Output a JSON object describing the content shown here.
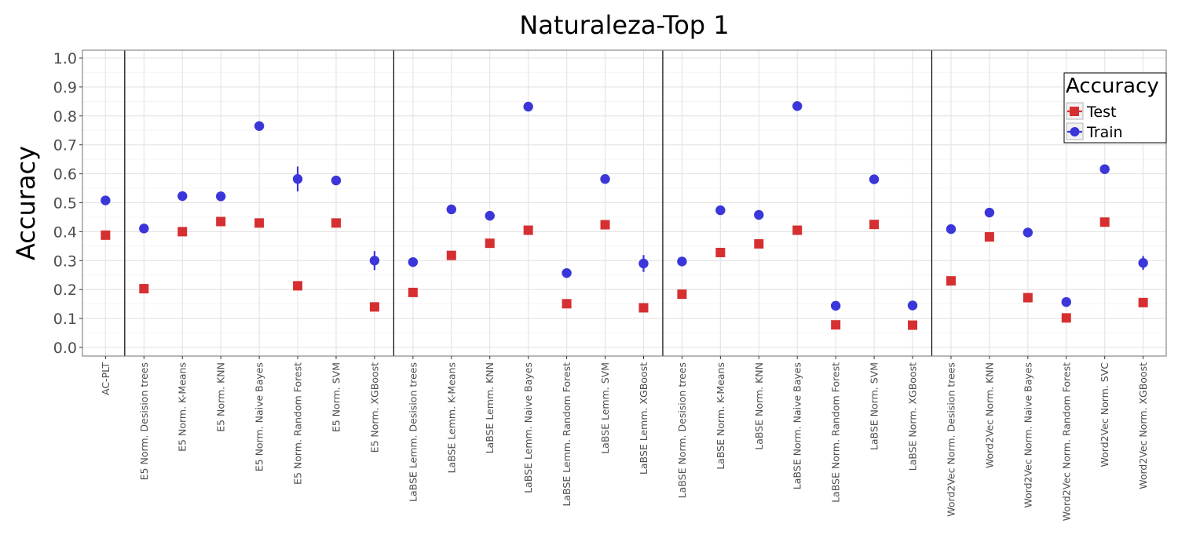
{
  "chart_data": {
    "type": "scatter",
    "title": "Naturaleza-Top 1",
    "xlabel": "",
    "ylabel": "Accuracy",
    "ylim": [
      0,
      1
    ],
    "yticks": [
      "0.0",
      "0.1",
      "0.2",
      "0.3",
      "0.4",
      "0.5",
      "0.6",
      "0.7",
      "0.8",
      "0.9",
      "1.0"
    ],
    "grid": true,
    "legend": {
      "title": "Accuracy",
      "placement": "top-right",
      "entries": [
        "Test",
        "Train"
      ]
    },
    "colors": {
      "Test": "#d62f31",
      "Train": "#3a36d9"
    },
    "group_separators_after": [
      "AC-PLT",
      "E5 Norm. XGBoost",
      "LaBSE Lemm. XGBoost",
      "LaBSE Norm. XGBoost"
    ],
    "categories": [
      "AC-PLT",
      "E5 Norm. Desision trees",
      "E5 Norm. K-Means",
      "E5 Norm. KNN",
      "E5 Norm. Naive Bayes",
      "E5 Norm. Random Forest",
      "E5 Norm. SVM",
      "E5 Norm. XGBoost",
      "LaBSE Lemm. Desision trees",
      "LaBSE Lemm. K-Means",
      "LaBSE Lemm. KNN",
      "LaBSE Lemm. Naive Bayes",
      "LaBSE Lemm. Random Forest",
      "LaBSE Lemm. SVM",
      "LaBSE Lemm. XGBoost",
      "LaBSE Norm. Desision trees",
      "LaBSE Norm. K-Means",
      "LaBSE Norm. KNN",
      "LaBSE Norm. Naive Bayes",
      "LaBSE Norm. Random Forest",
      "LaBSE Norm. SVM",
      "LaBSE Norm. XGBoost",
      "Word2Vec Norm. Desision trees",
      "Word2Vec Norm. KNN",
      "Word2Vec Norm. Naive Bayes",
      "Word2Vec Norm. Random Forest",
      "Word2Vec Norm. SVC",
      "Word2Vec Norm. XGBoost"
    ],
    "series": [
      {
        "name": "Test",
        "marker": "square",
        "values": [
          0.388,
          0.203,
          0.4,
          0.435,
          0.43,
          0.213,
          0.43,
          0.14,
          0.19,
          0.318,
          0.36,
          0.405,
          0.151,
          0.424,
          0.137,
          0.184,
          0.328,
          0.358,
          0.405,
          0.078,
          0.425,
          0.077,
          0.23,
          0.382,
          0.172,
          0.102,
          0.433,
          0.155
        ],
        "error": [
          0.004,
          0.004,
          0.015,
          0.005,
          0.004,
          0.004,
          0.004,
          0.004,
          0.003,
          0.012,
          0.008,
          0.006,
          0.003,
          0.004,
          0.003,
          0.003,
          0.007,
          0.014,
          0.006,
          0.003,
          0.015,
          0.003,
          0.003,
          0.007,
          0.003,
          0.003,
          0.004,
          0.003
        ]
      },
      {
        "name": "Train",
        "marker": "circle",
        "values": [
          0.508,
          0.411,
          0.523,
          0.522,
          0.765,
          0.582,
          0.577,
          0.3,
          0.295,
          0.477,
          0.455,
          0.832,
          0.257,
          0.582,
          0.29,
          0.297,
          0.474,
          0.458,
          0.834,
          0.144,
          0.581,
          0.145,
          0.409,
          0.466,
          0.397,
          0.157,
          0.616,
          0.292
        ],
        "error": [
          0.003,
          0.003,
          0.006,
          0.004,
          0.003,
          0.043,
          0.004,
          0.033,
          0.004,
          0.005,
          0.005,
          0.003,
          0.004,
          0.003,
          0.029,
          0.003,
          0.005,
          0.005,
          0.003,
          0.003,
          0.004,
          0.008,
          0.003,
          0.005,
          0.003,
          0.003,
          0.003,
          0.024
        ]
      }
    ]
  }
}
